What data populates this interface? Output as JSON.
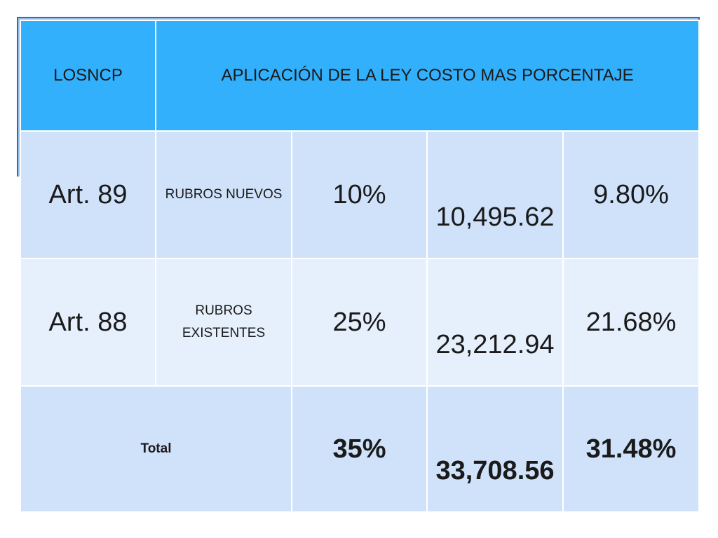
{
  "table": {
    "header": {
      "col1": "LOSNCP",
      "col2": "APLICACIÓN DE LA LEY COSTO MAS PORCENTAJE"
    },
    "rows": [
      {
        "article": "Art. 89",
        "category": "RUBROS NUEVOS",
        "percent": "10%",
        "amount": "10,495.62",
        "ratio": "9.80%"
      },
      {
        "article": "Art. 88",
        "category": "RUBROS EXISTENTES",
        "percent": "25%",
        "amount": "23,212.94",
        "ratio": "21.68%"
      }
    ],
    "total": {
      "label": "Total",
      "percent": "35%",
      "amount": "33,708.56",
      "ratio": "31.48%"
    }
  },
  "colors": {
    "header_bg": "#33b0fc",
    "row_dark": "#cfe2f9",
    "row_light": "#e6f0fc",
    "frame_border": "#2b6fb5"
  }
}
